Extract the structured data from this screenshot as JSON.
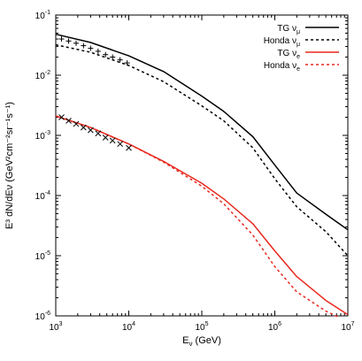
{
  "chart_data": {
    "type": "line",
    "xlabel": "E",
    "xlabel_sub": "ν",
    "xlabel_unit": " (GeV)",
    "ylabel": "E³ dN/dEν (GeV²cm⁻²sr⁻¹s⁻¹)",
    "xscale": "log",
    "yscale": "log",
    "xlim": [
      1000,
      10000000
    ],
    "ylim": [
      1e-06,
      0.1
    ],
    "x_ticks": [
      {
        "value": 1000,
        "base": "10",
        "exp": "3"
      },
      {
        "value": 10000,
        "base": "10",
        "exp": "4"
      },
      {
        "value": 100000,
        "base": "10",
        "exp": "5"
      },
      {
        "value": 1000000,
        "base": "10",
        "exp": "6"
      },
      {
        "value": 10000000,
        "base": "10",
        "exp": "7"
      }
    ],
    "y_ticks": [
      {
        "value": 0.1,
        "base": "10",
        "exp": "-1"
      },
      {
        "value": 0.01,
        "base": "10",
        "exp": "-2"
      },
      {
        "value": 0.001,
        "base": "10",
        "exp": "-3"
      },
      {
        "value": 0.0001,
        "base": "10",
        "exp": "-4"
      },
      {
        "value": 1e-05,
        "base": "10",
        "exp": "-5"
      },
      {
        "value": 1e-06,
        "base": "10",
        "exp": "-6"
      }
    ],
    "legend_position": "top-right",
    "series": [
      {
        "name": "TG ν",
        "sub": "μ",
        "color": "#000000",
        "dash": "solid",
        "x": [
          1000,
          3000,
          10000,
          30000,
          100000,
          200000,
          500000,
          1000000,
          2000000,
          5000000,
          10000000
        ],
        "y": [
          0.048,
          0.035,
          0.021,
          0.0115,
          0.0045,
          0.0025,
          0.00095,
          0.00032,
          0.00011,
          4.9e-05,
          2.7e-05
        ]
      },
      {
        "name": "Honda ν",
        "sub": "μ",
        "color": "#000000",
        "dash": "dashed",
        "x": [
          1000,
          3000,
          10000,
          30000,
          100000,
          200000,
          500000,
          1000000,
          2000000,
          5000000,
          10000000
        ],
        "y": [
          0.032,
          0.024,
          0.0145,
          0.0078,
          0.0031,
          0.00175,
          0.00062,
          0.00019,
          6.5e-05,
          2.5e-05,
          1e-05
        ]
      },
      {
        "name": "TG ν",
        "sub": "e",
        "color": "#e8281e",
        "dash": "solid",
        "x": [
          1000,
          3000,
          10000,
          30000,
          100000,
          200000,
          500000,
          1000000,
          2000000,
          5000000,
          10000000
        ],
        "y": [
          0.0021,
          0.00135,
          0.00072,
          0.00037,
          0.00016,
          8.8e-05,
          3.4e-05,
          1.2e-05,
          4.5e-06,
          1.8e-06,
          1.05e-06
        ]
      },
      {
        "name": "Honda ν",
        "sub": "e",
        "color": "#e8281e",
        "dash": "dashed",
        "x": [
          1000,
          3000,
          10000,
          30000,
          100000,
          200000,
          500000,
          1000000,
          2000000,
          5000000,
          7500000
        ],
        "y": [
          0.0021,
          0.00135,
          0.00072,
          0.00036,
          0.000143,
          7.3e-05,
          2.2e-05,
          6.6e-06,
          2.5e-06,
          1.2e-06,
          9.5e-07
        ]
      }
    ],
    "markers": [
      {
        "symbol": "+",
        "color": "#000000",
        "x": [
          1200,
          1500,
          1900,
          2400,
          3000,
          3800,
          4800,
          6000,
          7600,
          9500
        ],
        "y": [
          0.04,
          0.037,
          0.034,
          0.031,
          0.028,
          0.025,
          0.022,
          0.02,
          0.018,
          0.016
        ]
      },
      {
        "symbol": "x",
        "color": "#000000",
        "x": [
          1200,
          1500,
          1900,
          2400,
          3000,
          3800,
          4800,
          6000,
          7600,
          10000
        ],
        "y": [
          0.002,
          0.00175,
          0.00155,
          0.00135,
          0.00122,
          0.00108,
          0.00092,
          0.00082,
          0.00072,
          0.00062
        ]
      }
    ]
  }
}
